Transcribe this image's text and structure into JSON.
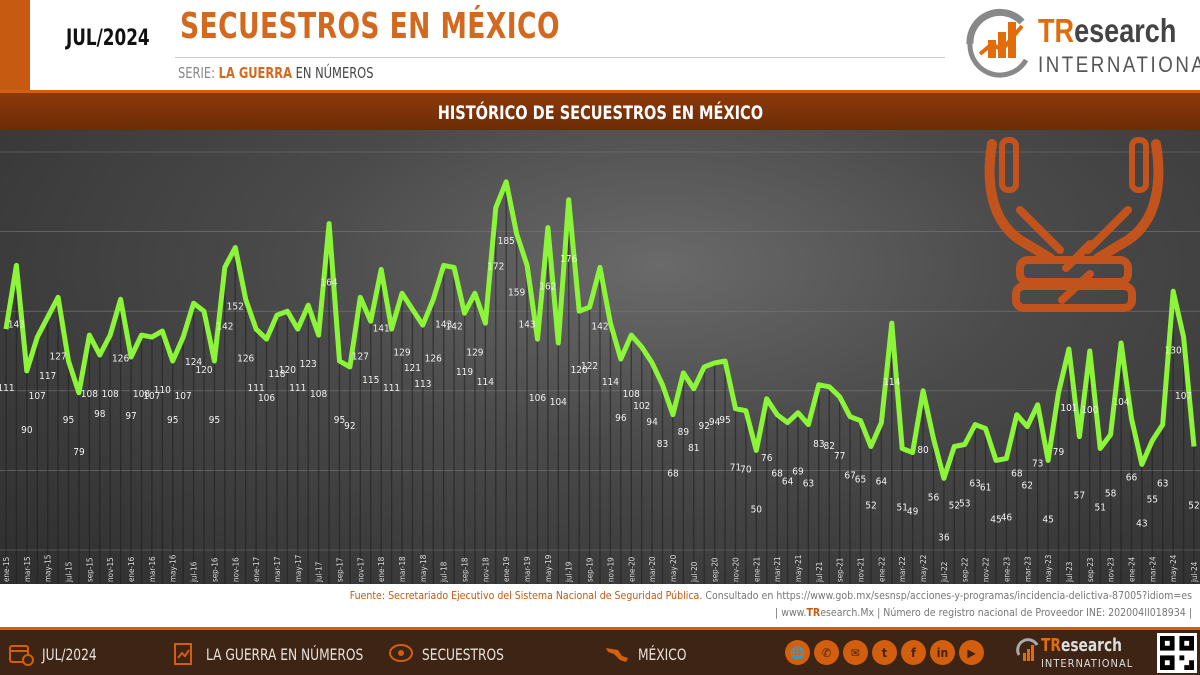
{
  "header": {
    "date": "JUL/2024",
    "title": "SECUESTROS EN MÉXICO",
    "series_prefix": "SERIE:",
    "series_name": "LA GUERRA",
    "series_suffix": "EN NÚMEROS"
  },
  "logo": {
    "tr": "TR",
    "esearch": "esearch",
    "international": "INTERNATIONAL"
  },
  "source": {
    "prefix": "Fuente:",
    "org": "Secretariado Ejecutivo del Sistema Nacional de Seguridad Pública.",
    "consulted": "Consultado en https://www.gob.mx/sesnsp/acciones-y-programas/incidencia-delictiva-87005?idiom=es",
    "site_prefix": "| www.",
    "site_tr": "TR",
    "site_rest": "esearch.Mx",
    "registry": "| Número de registro nacional de Proveedor INE: 202004II018934 |"
  },
  "footer": {
    "date": "JUL/2024",
    "series": "LA GUERRA EN NÚMEROS",
    "topic": "SECUESTROS",
    "region": "MÉXICO",
    "social": [
      "www",
      "whatsapp",
      "email",
      "twitter",
      "facebook",
      "linkedin",
      "youtube"
    ],
    "logo_tr": "TR",
    "logo_rest": "esearch",
    "logo_int": "INTERNATIONAL"
  },
  "colors": {
    "accent": "#d35f0e",
    "line": "#8cf53a",
    "bg": "#3a3a3a"
  },
  "chart_data": {
    "type": "line",
    "title": "HISTÓRICO DE SECUESTROS EN MÉXICO",
    "series": [
      {
        "values": [
          111,
          143,
          90,
          107,
          117,
          127,
          95,
          79,
          108,
          98,
          108,
          126,
          97,
          108,
          107,
          110,
          95,
          107,
          124,
          120,
          95,
          142,
          152,
          126,
          111,
          106,
          118,
          120,
          111,
          123,
          108,
          164,
          95,
          92,
          127,
          115,
          141,
          111,
          129,
          121,
          113,
          126,
          143,
          142,
          119,
          129,
          114,
          172,
          185,
          159,
          143,
          106,
          162,
          104,
          176,
          120,
          122,
          142,
          114,
          96,
          108,
          102,
          94,
          83,
          68,
          89,
          81,
          92,
          94,
          95,
          71,
          70,
          50,
          76,
          68,
          64,
          69,
          63,
          83,
          82,
          77,
          67,
          65,
          52,
          64,
          114,
          51,
          49,
          80,
          56,
          36,
          52,
          53,
          63,
          61,
          45,
          46,
          68,
          62,
          73,
          45,
          79,
          101,
          57,
          100,
          51,
          58,
          104,
          66,
          43,
          55,
          63,
          130,
          107,
          52
        ]
      }
    ],
    "x_tick_labels": [
      "ene-15",
      "mar-15",
      "may-15",
      "jul-15",
      "sep-15",
      "nov-15",
      "ene-16",
      "mar-16",
      "may-16",
      "jul-16",
      "sep-16",
      "nov-16",
      "ene-17",
      "mar-17",
      "may-17",
      "jul-17",
      "sep-17",
      "nov-17",
      "ene-18",
      "mar-18",
      "may-18",
      "jul-18",
      "sep-18",
      "nov-18",
      "ene-19",
      "mar-19",
      "may-19",
      "jul-19",
      "sep-19",
      "nov-19",
      "ene-20",
      "mar-20",
      "may-20",
      "jul-20",
      "sep-20",
      "nov-20",
      "ene-21",
      "mar-21",
      "may-21",
      "jul-21",
      "sep-21",
      "nov-21",
      "ene-22",
      "mar-22",
      "may-22",
      "jul-22",
      "sep-22",
      "nov-22",
      "ene-23",
      "mar-23",
      "may-23",
      "jul-23",
      "sep-23",
      "nov-23",
      "ene-24",
      "mar-24",
      "may-24",
      "jul-24"
    ],
    "x_range": [
      "ene-15",
      "jul-24"
    ],
    "grid": true
  }
}
